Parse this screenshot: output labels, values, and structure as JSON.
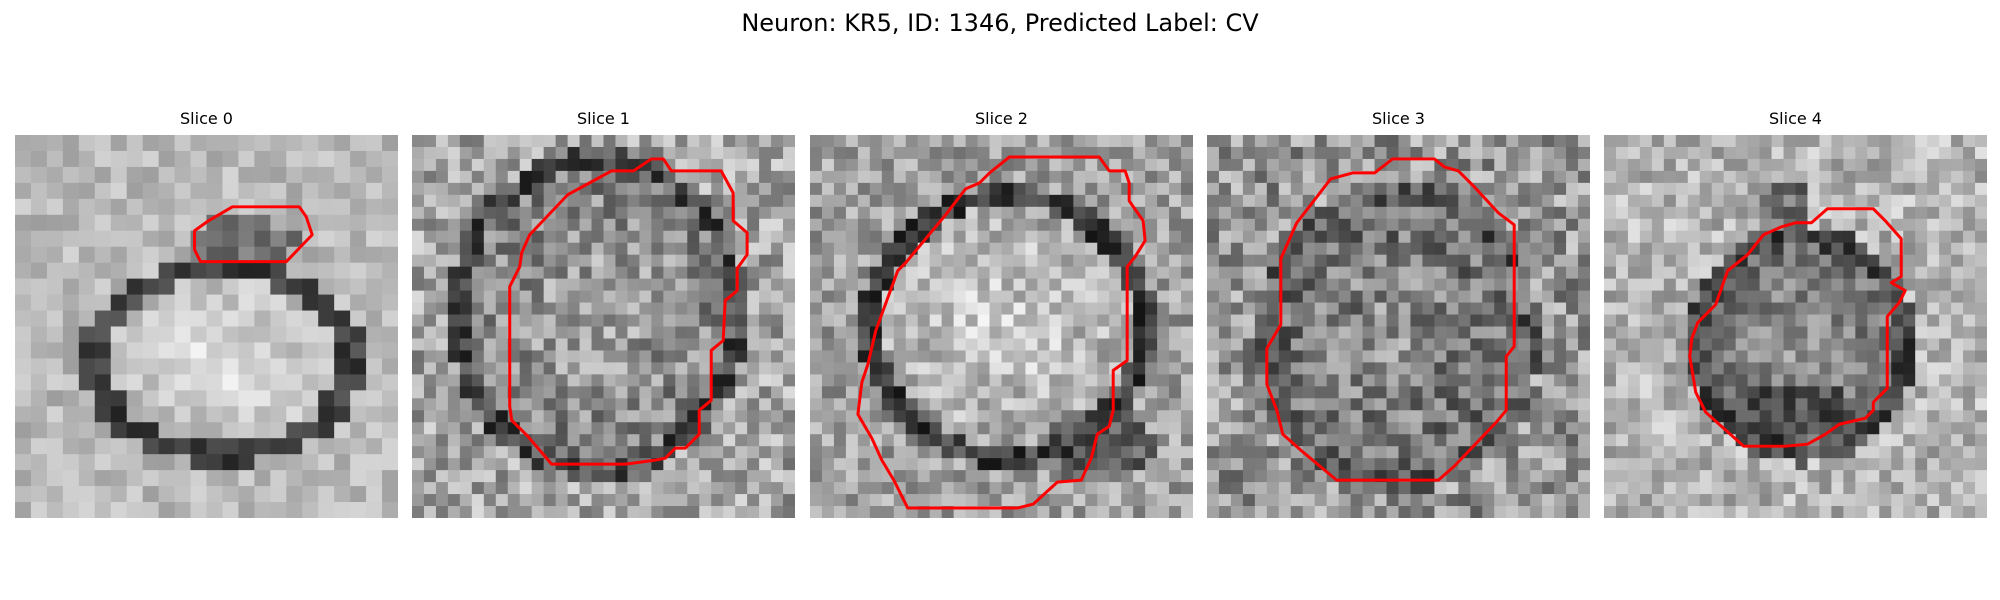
{
  "figure": {
    "title": "Neuron: KR5, ID: 1346, Predicted Label: CV"
  },
  "colors": {
    "background": "#ffffff",
    "outline": "#ff0000",
    "grayscale_low": "#141414",
    "grayscale_high": "#f0f0f0"
  },
  "panels": [
    {
      "title": "Slice 0",
      "image_description_icon": "grayscale-patch-icon",
      "contour": "slice0-contour"
    },
    {
      "title": "Slice 1",
      "image_description_icon": "grayscale-patch-icon",
      "contour": "slice1-contour"
    },
    {
      "title": "Slice 2",
      "image_description_icon": "grayscale-patch-icon",
      "contour": "slice2-contour"
    },
    {
      "title": "Slice 3",
      "image_description_icon": "grayscale-patch-icon",
      "contour": "slice3-contour"
    },
    {
      "title": "Slice 4",
      "image_description_icon": "grayscale-patch-icon",
      "contour": "slice4-contour"
    }
  ]
}
